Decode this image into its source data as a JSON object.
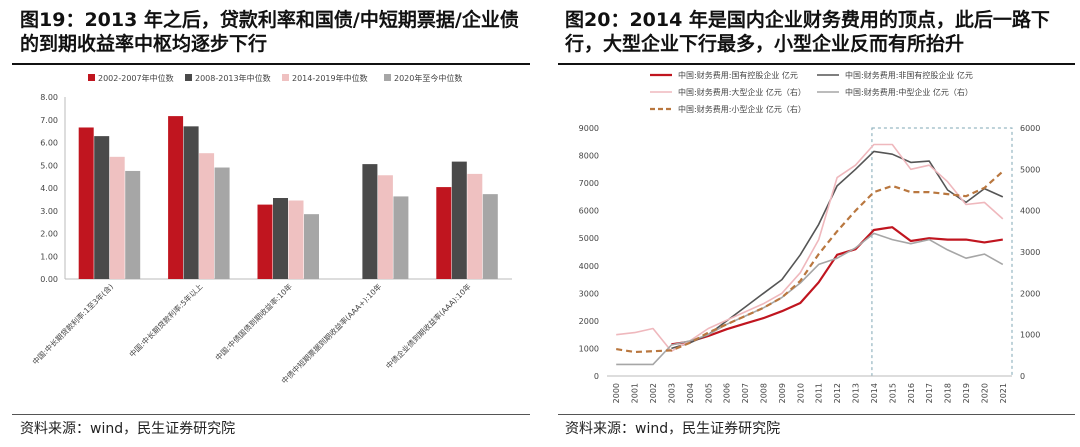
{
  "left_panel": {
    "title": "图19：2013 年之后，贷款利率和国债/中短期票据/企业债的到期收益率中枢均逐步下行",
    "source": "资料来源：wind，民生证券研究院"
  },
  "right_panel": {
    "title": "图20：2014 年是国内企业财务费用的顶点，此后一路下行，大型企业下行最多，小型企业反而有所抬升",
    "source": "资料来源：wind，民生证券研究院"
  },
  "chart_data": [
    {
      "type": "bar",
      "categories": [
        "中国:中长期贷款利率:1至3年(含)",
        "中国:中长期贷款利率:5年以上",
        "中国:中债国债到期收益率:10年",
        "中债中短期票据到期收益率(AAA+):10年",
        "中债企业债到期收益率(AAA):10年"
      ],
      "series": [
        {
          "name": "2002-2007年中位数",
          "color": "#c0151f",
          "values": [
            6.66,
            7.16,
            3.27,
            null,
            4.04
          ]
        },
        {
          "name": "2008-2013年中位数",
          "color": "#4a4a4a",
          "values": [
            6.28,
            6.71,
            3.56,
            5.05,
            5.16
          ]
        },
        {
          "name": "2014-2019年中位数",
          "color": "#efc1c1",
          "values": [
            5.37,
            5.53,
            3.45,
            4.56,
            4.62
          ]
        },
        {
          "name": "2020年至今中位数",
          "color": "#a6a6a6",
          "values": [
            4.75,
            4.9,
            2.85,
            3.63,
            3.73
          ]
        }
      ],
      "ylim": [
        0,
        8
      ],
      "yticks": [
        "0.00",
        "1.00",
        "2.00",
        "3.00",
        "4.00",
        "5.00",
        "6.00",
        "7.00",
        "8.00"
      ],
      "legend": "top",
      "grid": false
    },
    {
      "type": "line",
      "x": [
        "2000",
        "2001",
        "2002",
        "2003",
        "2004",
        "2005",
        "2006",
        "2007",
        "2008",
        "2009",
        "2010",
        "2011",
        "2012",
        "2013",
        "2014",
        "2015",
        "2016",
        "2017",
        "2018",
        "2019",
        "2020",
        "2021"
      ],
      "ylim_left": [
        0,
        9000
      ],
      "yticks_left": [
        "0",
        "1000",
        "2000",
        "3000",
        "4000",
        "5000",
        "6000",
        "7000",
        "8000",
        "9000"
      ],
      "ylim_right": [
        0,
        6000
      ],
      "yticks_right": [
        "0",
        "1000",
        "2000",
        "3000",
        "4000",
        "5000",
        "6000"
      ],
      "highlight_region": [
        "2014",
        "2021"
      ],
      "legend": "top",
      "grid": false,
      "series": [
        {
          "name": "中国:财务费用:国有控股企业 亿元",
          "axis": "left",
          "color": "#c0151f",
          "style": "solid",
          "width": 2.2,
          "values": [
            null,
            null,
            null,
            1150,
            1250,
            1450,
            1700,
            1900,
            2100,
            2350,
            2650,
            3400,
            4400,
            4600,
            5300,
            5400,
            4900,
            5000,
            4950,
            4950,
            4850,
            4950
          ]
        },
        {
          "name": "中国:财务费用:非国有控股企业 亿元",
          "axis": "left",
          "color": "#555555",
          "style": "solid",
          "width": 1.6,
          "values": [
            null,
            null,
            null,
            1000,
            1200,
            1500,
            2000,
            2500,
            3000,
            3500,
            4400,
            5500,
            6900,
            7500,
            8150,
            8050,
            7750,
            7800,
            6750,
            6300,
            6800,
            6500
          ]
        },
        {
          "name": "中国:财务费用:大型企业 亿元（右）",
          "axis": "right",
          "color": "#efb8bd",
          "style": "solid",
          "width": 1.6,
          "values": [
            1000,
            1050,
            1150,
            600,
            850,
            1150,
            1350,
            1550,
            1750,
            2000,
            2500,
            3300,
            4800,
            5100,
            5600,
            5600,
            5000,
            5100,
            4700,
            4150,
            4200,
            3800
          ]
        },
        {
          "name": "中国:财务费用:中型企业 亿元（右）",
          "axis": "right",
          "color": "#a6a6a6",
          "style": "solid",
          "width": 1.6,
          "values": [
            280,
            280,
            280,
            750,
            850,
            1000,
            1250,
            1450,
            1650,
            1900,
            2250,
            2700,
            2850,
            3100,
            3450,
            3300,
            3200,
            3300,
            3050,
            2850,
            2950,
            2700
          ]
        },
        {
          "name": "中国:财务费用:小型企业 亿元（右）",
          "axis": "right",
          "color": "#b9773f",
          "style": "dashed",
          "width": 2.2,
          "values": [
            650,
            580,
            600,
            620,
            800,
            1050,
            1250,
            1450,
            1650,
            1900,
            2300,
            2950,
            3500,
            4000,
            4450,
            4600,
            4450,
            4450,
            4400,
            4350,
            4550,
            4950
          ]
        }
      ]
    }
  ]
}
